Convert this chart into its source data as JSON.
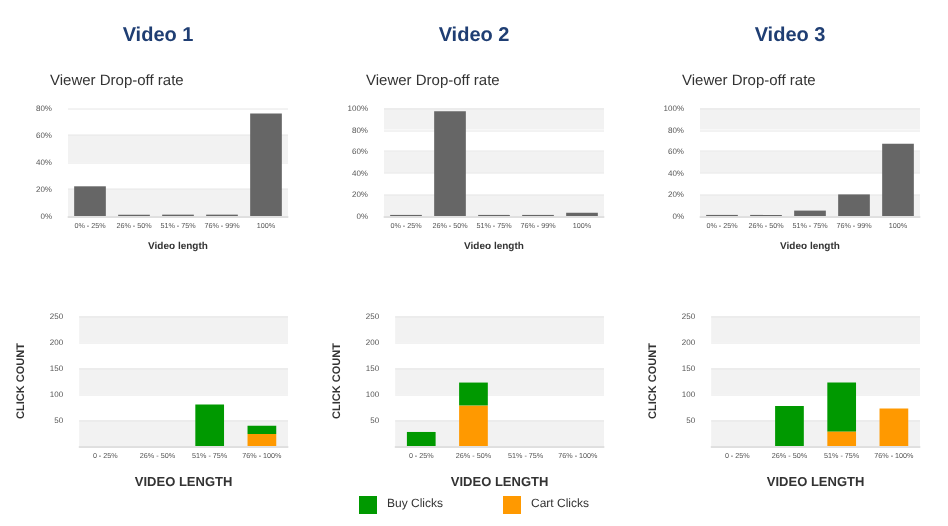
{
  "chart_data": [
    {
      "type": "bar",
      "title": "Video 1",
      "subtitle": "Viewer Drop-off rate",
      "xlabel": "Video length",
      "categories": [
        "0% - 25%",
        "26% - 50%",
        "51% - 75%",
        "76% - 99%",
        "100%"
      ],
      "values": [
        22,
        1,
        1,
        1,
        76
      ],
      "color": "#666666",
      "ylim": [
        0,
        80
      ],
      "yticks": [
        {
          "value": 0,
          "label": "0%"
        },
        {
          "value": 20,
          "label": "20%"
        },
        {
          "value": 40,
          "label": "40%"
        },
        {
          "value": 60,
          "label": "60%"
        },
        {
          "value": 80,
          "label": "80%"
        }
      ],
      "grid": true
    },
    {
      "type": "bar",
      "title": "Video 2",
      "subtitle": "Viewer Drop-off rate",
      "xlabel": "Video length",
      "categories": [
        "0% - 25%",
        "26% - 50%",
        "51% - 75%",
        "76% - 99%",
        "100%"
      ],
      "values": [
        1,
        97,
        1,
        1,
        3
      ],
      "color": "#666666",
      "ylim": [
        0,
        100
      ],
      "yticks": [
        {
          "value": 0,
          "label": "0%"
        },
        {
          "value": 20,
          "label": "20%"
        },
        {
          "value": 40,
          "label": "40%"
        },
        {
          "value": 60,
          "label": "60%"
        },
        {
          "value": 80,
          "label": "80%"
        },
        {
          "value": 100,
          "label": "100%"
        }
      ],
      "grid": true
    },
    {
      "type": "bar",
      "title": "Video 3",
      "subtitle": "Viewer Drop-off rate",
      "xlabel": "Video length",
      "categories": [
        "0% - 25%",
        "26% - 50%",
        "51% - 75%",
        "76% - 99%",
        "100%"
      ],
      "values": [
        1,
        1,
        5,
        20,
        67
      ],
      "color": "#666666",
      "ylim": [
        0,
        100
      ],
      "yticks": [
        {
          "value": 0,
          "label": "0%"
        },
        {
          "value": 20,
          "label": "20%"
        },
        {
          "value": 40,
          "label": "40%"
        },
        {
          "value": 60,
          "label": "60%"
        },
        {
          "value": 80,
          "label": "80%"
        },
        {
          "value": 100,
          "label": "100%"
        }
      ],
      "grid": true
    },
    {
      "type": "bar",
      "stacked": true,
      "xlabel": "VIDEO LENGTH",
      "ylabel": "CLICK COUNT",
      "categories": [
        "0 - 25%",
        "26% - 50%",
        "51% - 75%",
        "76% - 100%"
      ],
      "ylim": [
        0,
        250
      ],
      "yticks": [
        50,
        100,
        150,
        200,
        250
      ],
      "grid": true,
      "series": [
        {
          "color": "#ff9900",
          "values": [
            0,
            0,
            0,
            23
          ]
        },
        {
          "color": "#009900",
          "values": [
            0,
            0,
            80,
            16
          ]
        }
      ]
    },
    {
      "type": "bar",
      "stacked": true,
      "xlabel": "VIDEO LENGTH",
      "ylabel": "CLICK COUNT",
      "categories": [
        "0 - 25%",
        "26% - 50%",
        "51% - 75%",
        "76% - 100%"
      ],
      "ylim": [
        0,
        250
      ],
      "yticks": [
        50,
        100,
        150,
        200,
        250
      ],
      "grid": true,
      "legend": "bottom",
      "series": [
        {
          "name": "Cart Clicks",
          "color": "#ff9900",
          "values": [
            0,
            78,
            0,
            0
          ]
        },
        {
          "name": "Buy Clicks",
          "color": "#009900",
          "values": [
            27,
            44,
            0,
            0
          ]
        }
      ]
    },
    {
      "type": "bar",
      "stacked": true,
      "xlabel": "VIDEO LENGTH",
      "ylabel": "CLICK COUNT",
      "categories": [
        "0 - 25%",
        "26% - 50%",
        "51% - 75%",
        "76% - 100%"
      ],
      "ylim": [
        0,
        250
      ],
      "yticks": [
        50,
        100,
        150,
        200,
        250
      ],
      "grid": true,
      "series": [
        {
          "color": "#ff9900",
          "values": [
            0,
            0,
            28,
            72
          ]
        },
        {
          "color": "#009900",
          "values": [
            0,
            77,
            94,
            0
          ]
        }
      ]
    }
  ]
}
